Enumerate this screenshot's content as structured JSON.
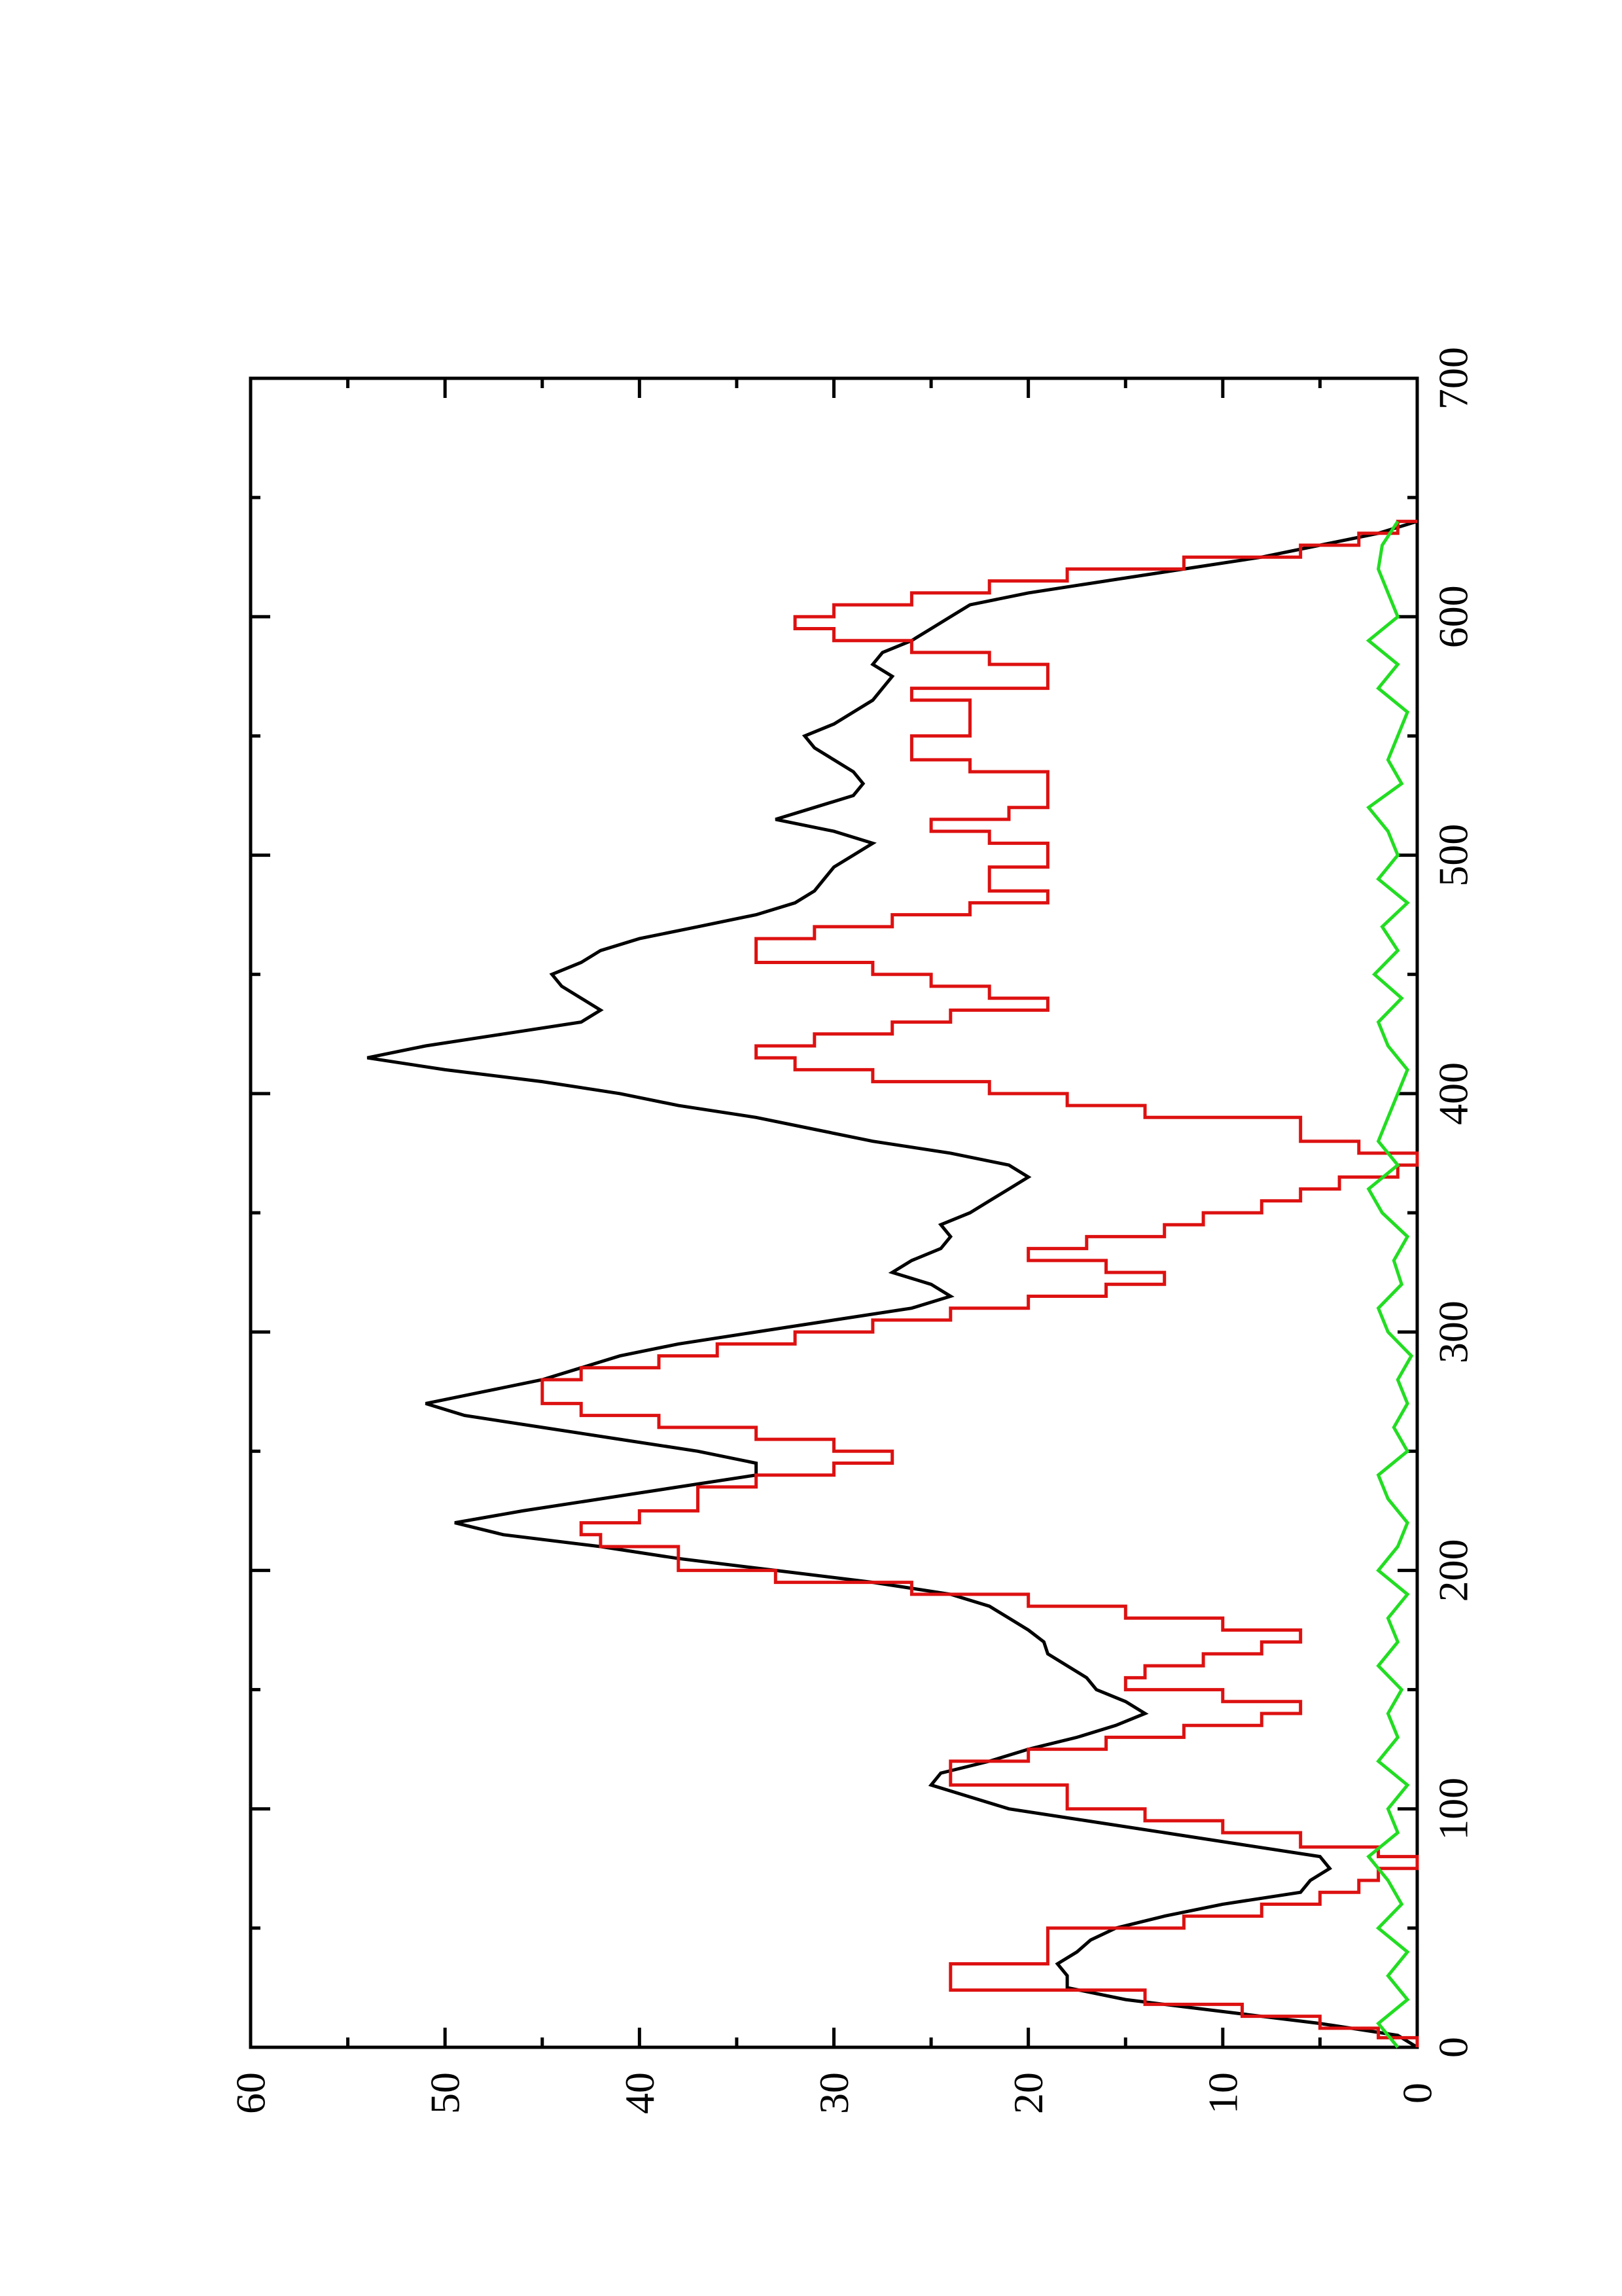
{
  "chart_data": {
    "type": "line",
    "title": "",
    "xlabel": "",
    "ylabel": "",
    "orientation": "rotated-90-ccw",
    "grid": false,
    "legend": "none",
    "xlim": [
      0,
      700
    ],
    "ylim": [
      0,
      60
    ],
    "x_ticks": [
      "0",
      "100",
      "200",
      "300",
      "400",
      "500",
      "600",
      "700"
    ],
    "y_ticks": [
      "0",
      "10",
      "20",
      "30",
      "40",
      "50",
      "60"
    ],
    "series": [
      {
        "color": "#000000",
        "style": "solid",
        "points": [
          [
            0,
            0
          ],
          [
            5,
            1
          ],
          [
            10,
            5
          ],
          [
            15,
            10
          ],
          [
            20,
            15
          ],
          [
            25,
            18
          ],
          [
            30,
            18
          ],
          [
            35,
            18.5
          ],
          [
            40,
            17.5
          ],
          [
            45,
            16.8
          ],
          [
            50,
            15.5
          ],
          [
            55,
            13
          ],
          [
            60,
            10
          ],
          [
            65,
            6
          ],
          [
            70,
            5.5
          ],
          [
            75,
            4.5
          ],
          [
            80,
            5
          ],
          [
            85,
            9
          ],
          [
            90,
            13
          ],
          [
            95,
            17
          ],
          [
            100,
            21
          ],
          [
            105,
            23
          ],
          [
            110,
            25
          ],
          [
            115,
            24.5
          ],
          [
            120,
            22
          ],
          [
            125,
            20
          ],
          [
            130,
            17.5
          ],
          [
            135,
            15.5
          ],
          [
            140,
            14
          ],
          [
            145,
            15
          ],
          [
            150,
            16.5
          ],
          [
            155,
            17
          ],
          [
            160,
            18
          ],
          [
            165,
            19
          ],
          [
            170,
            19.2
          ],
          [
            175,
            20
          ],
          [
            180,
            21
          ],
          [
            185,
            22
          ],
          [
            190,
            24
          ],
          [
            195,
            28
          ],
          [
            200,
            33
          ],
          [
            205,
            38
          ],
          [
            210,
            42
          ],
          [
            215,
            47
          ],
          [
            220,
            49.5
          ],
          [
            225,
            46
          ],
          [
            230,
            42
          ],
          [
            235,
            38
          ],
          [
            240,
            34
          ],
          [
            245,
            34
          ],
          [
            250,
            37
          ],
          [
            255,
            41
          ],
          [
            260,
            45
          ],
          [
            265,
            49
          ],
          [
            270,
            51
          ],
          [
            275,
            48
          ],
          [
            280,
            45
          ],
          [
            285,
            43
          ],
          [
            290,
            41
          ],
          [
            295,
            38
          ],
          [
            300,
            34
          ],
          [
            305,
            30
          ],
          [
            310,
            26
          ],
          [
            315,
            24
          ],
          [
            320,
            25
          ],
          [
            325,
            27
          ],
          [
            330,
            26
          ],
          [
            335,
            24.5
          ],
          [
            340,
            24
          ],
          [
            345,
            24.5
          ],
          [
            350,
            23
          ],
          [
            355,
            22
          ],
          [
            360,
            21
          ],
          [
            365,
            20
          ],
          [
            370,
            21
          ],
          [
            375,
            24
          ],
          [
            380,
            28
          ],
          [
            385,
            31
          ],
          [
            390,
            34
          ],
          [
            395,
            38
          ],
          [
            400,
            41
          ],
          [
            405,
            45
          ],
          [
            410,
            50
          ],
          [
            415,
            54
          ],
          [
            420,
            51
          ],
          [
            425,
            47
          ],
          [
            430,
            43
          ],
          [
            435,
            42
          ],
          [
            440,
            43
          ],
          [
            445,
            44
          ],
          [
            450,
            44.5
          ],
          [
            455,
            43
          ],
          [
            460,
            42
          ],
          [
            465,
            40
          ],
          [
            470,
            37
          ],
          [
            475,
            34
          ],
          [
            480,
            32
          ],
          [
            485,
            31
          ],
          [
            490,
            30.5
          ],
          [
            495,
            30
          ],
          [
            500,
            29
          ],
          [
            505,
            28
          ],
          [
            510,
            30
          ],
          [
            515,
            33
          ],
          [
            520,
            31
          ],
          [
            525,
            29
          ],
          [
            530,
            28.5
          ],
          [
            535,
            29
          ],
          [
            540,
            30
          ],
          [
            545,
            31
          ],
          [
            550,
            31.5
          ],
          [
            555,
            30
          ],
          [
            560,
            29
          ],
          [
            565,
            28
          ],
          [
            570,
            27.5
          ],
          [
            575,
            27
          ],
          [
            580,
            28
          ],
          [
            585,
            27.5
          ],
          [
            590,
            26
          ],
          [
            595,
            25
          ],
          [
            600,
            24
          ],
          [
            605,
            23
          ],
          [
            610,
            20
          ],
          [
            615,
            16
          ],
          [
            620,
            12
          ],
          [
            625,
            8
          ],
          [
            630,
            5
          ],
          [
            635,
            2
          ],
          [
            640,
            0
          ]
        ]
      },
      {
        "color": "#dd1111",
        "style": "step",
        "points": [
          [
            0,
            0
          ],
          [
            4,
            2
          ],
          [
            8,
            5
          ],
          [
            13,
            9
          ],
          [
            18,
            14
          ],
          [
            24,
            24
          ],
          [
            30,
            24
          ],
          [
            35,
            19
          ],
          [
            45,
            19
          ],
          [
            50,
            12
          ],
          [
            55,
            8
          ],
          [
            60,
            5
          ],
          [
            65,
            3
          ],
          [
            70,
            2
          ],
          [
            75,
            0
          ],
          [
            80,
            2
          ],
          [
            84,
            6
          ],
          [
            90,
            10
          ],
          [
            95,
            14
          ],
          [
            100,
            18
          ],
          [
            110,
            24
          ],
          [
            114,
            24
          ],
          [
            120,
            20
          ],
          [
            125,
            16
          ],
          [
            130,
            12
          ],
          [
            135,
            8
          ],
          [
            140,
            6
          ],
          [
            145,
            10
          ],
          [
            150,
            15
          ],
          [
            155,
            14
          ],
          [
            160,
            11
          ],
          [
            165,
            8
          ],
          [
            170,
            6
          ],
          [
            175,
            10
          ],
          [
            180,
            15
          ],
          [
            185,
            20
          ],
          [
            190,
            26
          ],
          [
            195,
            33
          ],
          [
            200,
            38
          ],
          [
            210,
            42
          ],
          [
            215,
            43
          ],
          [
            220,
            40
          ],
          [
            225,
            37
          ],
          [
            230,
            37
          ],
          [
            235,
            34
          ],
          [
            240,
            30
          ],
          [
            245,
            27
          ],
          [
            250,
            30
          ],
          [
            255,
            34
          ],
          [
            260,
            39
          ],
          [
            265,
            43
          ],
          [
            270,
            45
          ],
          [
            276,
            45
          ],
          [
            280,
            43
          ],
          [
            285,
            39
          ],
          [
            290,
            36
          ],
          [
            295,
            32
          ],
          [
            300,
            28
          ],
          [
            305,
            24
          ],
          [
            310,
            20
          ],
          [
            315,
            16
          ],
          [
            320,
            13
          ],
          [
            325,
            16
          ],
          [
            330,
            20
          ],
          [
            335,
            17
          ],
          [
            340,
            13
          ],
          [
            345,
            11
          ],
          [
            350,
            8
          ],
          [
            355,
            6
          ],
          [
            360,
            4
          ],
          [
            365,
            1
          ],
          [
            370,
            0
          ],
          [
            375,
            3
          ],
          [
            380,
            6
          ],
          [
            390,
            14
          ],
          [
            395,
            18
          ],
          [
            400,
            22
          ],
          [
            405,
            28
          ],
          [
            410,
            32
          ],
          [
            415,
            34
          ],
          [
            420,
            31
          ],
          [
            425,
            27
          ],
          [
            430,
            24
          ],
          [
            435,
            19
          ],
          [
            440,
            22
          ],
          [
            445,
            25
          ],
          [
            450,
            28
          ],
          [
            455,
            34
          ],
          [
            460,
            34
          ],
          [
            465,
            31
          ],
          [
            470,
            27
          ],
          [
            475,
            23
          ],
          [
            480,
            19
          ],
          [
            485,
            22
          ],
          [
            490,
            22
          ],
          [
            495,
            19
          ],
          [
            500,
            19
          ],
          [
            505,
            22
          ],
          [
            510,
            25
          ],
          [
            515,
            21
          ],
          [
            520,
            19
          ],
          [
            525,
            19
          ],
          [
            530,
            19
          ],
          [
            535,
            23
          ],
          [
            540,
            26
          ],
          [
            545,
            26
          ],
          [
            550,
            23
          ],
          [
            555,
            23
          ],
          [
            560,
            23
          ],
          [
            565,
            26
          ],
          [
            570,
            19
          ],
          [
            575,
            19
          ],
          [
            580,
            22
          ],
          [
            585,
            26
          ],
          [
            590,
            30
          ],
          [
            595,
            32
          ],
          [
            600,
            30
          ],
          [
            605,
            26
          ],
          [
            610,
            22
          ],
          [
            615,
            18
          ],
          [
            620,
            12
          ],
          [
            625,
            6
          ],
          [
            630,
            3
          ],
          [
            635,
            1
          ],
          [
            640,
            0
          ]
        ]
      },
      {
        "color": "#22dd22",
        "style": "solid",
        "points": [
          [
            0,
            1
          ],
          [
            10,
            2
          ],
          [
            20,
            0.5
          ],
          [
            30,
            1.5
          ],
          [
            40,
            0.5
          ],
          [
            50,
            2
          ],
          [
            60,
            0.8
          ],
          [
            70,
            1.5
          ],
          [
            80,
            2.5
          ],
          [
            90,
            1
          ],
          [
            100,
            1.5
          ],
          [
            110,
            0.5
          ],
          [
            120,
            2
          ],
          [
            130,
            1
          ],
          [
            140,
            1.5
          ],
          [
            150,
            0.8
          ],
          [
            160,
            2
          ],
          [
            170,
            1
          ],
          [
            180,
            1.5
          ],
          [
            190,
            0.5
          ],
          [
            200,
            2
          ],
          [
            210,
            1
          ],
          [
            220,
            0.5
          ],
          [
            230,
            1.5
          ],
          [
            240,
            2
          ],
          [
            250,
            0.5
          ],
          [
            260,
            1.2
          ],
          [
            270,
            0.5
          ],
          [
            280,
            1
          ],
          [
            290,
            0.3
          ],
          [
            300,
            1.5
          ],
          [
            310,
            2
          ],
          [
            320,
            0.8
          ],
          [
            330,
            1.2
          ],
          [
            340,
            0.5
          ],
          [
            350,
            1.8
          ],
          [
            360,
            2.5
          ],
          [
            370,
            1
          ],
          [
            380,
            2
          ],
          [
            390,
            1.5
          ],
          [
            400,
            1
          ],
          [
            410,
            0.5
          ],
          [
            420,
            1.5
          ],
          [
            430,
            2
          ],
          [
            440,
            0.8
          ],
          [
            450,
            2.2
          ],
          [
            460,
            1
          ],
          [
            470,
            1.8
          ],
          [
            480,
            0.5
          ],
          [
            490,
            2
          ],
          [
            500,
            1
          ],
          [
            510,
            1.5
          ],
          [
            520,
            2.5
          ],
          [
            530,
            0.8
          ],
          [
            540,
            1.5
          ],
          [
            550,
            1
          ],
          [
            560,
            0.5
          ],
          [
            570,
            2
          ],
          [
            580,
            1
          ],
          [
            590,
            2.5
          ],
          [
            600,
            1
          ],
          [
            610,
            1.5
          ],
          [
            620,
            2
          ],
          [
            630,
            1.8
          ],
          [
            640,
            1
          ]
        ]
      }
    ]
  }
}
